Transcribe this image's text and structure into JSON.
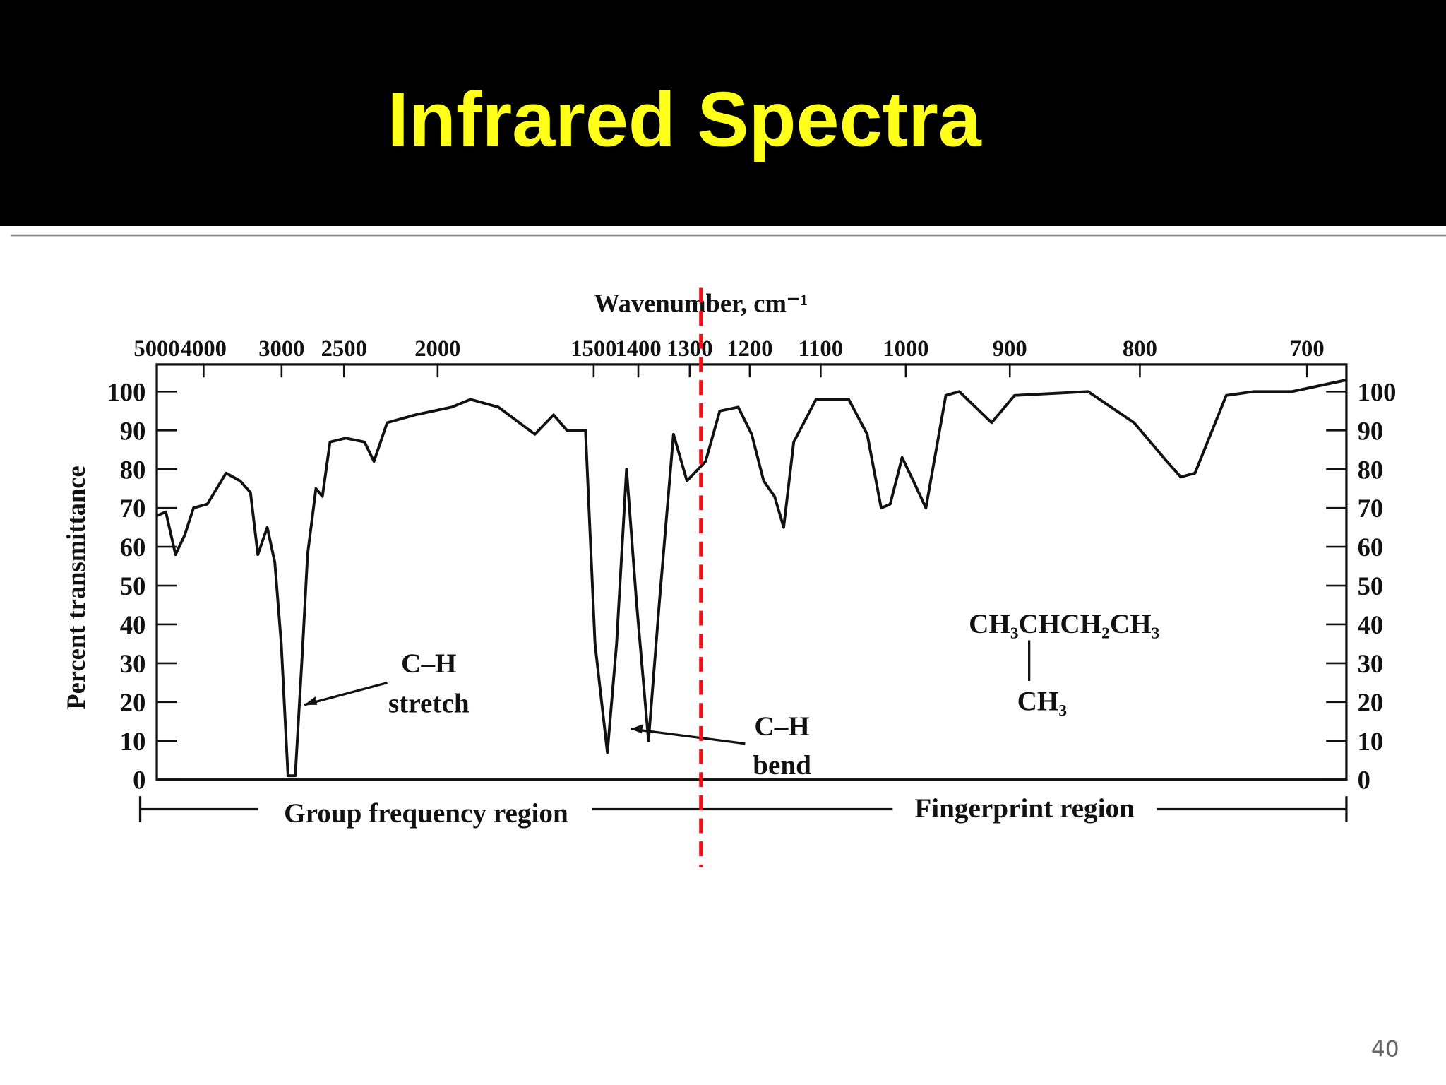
{
  "slide": {
    "title": "Infrared Spectra",
    "page_number": "40"
  },
  "chart_data": {
    "type": "line",
    "xlabel": "Wavenumber, cm⁻¹",
    "ylabel": "Percent transmittance",
    "xscale": "reciprocal",
    "xlim": [
      5000,
      680
    ],
    "xticks": [
      5000,
      4000,
      3000,
      2500,
      2000,
      1500,
      1400,
      1300,
      1200,
      1100,
      1000,
      900,
      800,
      700
    ],
    "ylim": [
      0,
      107
    ],
    "yticks": [
      0,
      10,
      20,
      30,
      40,
      50,
      60,
      70,
      80,
      90,
      100
    ],
    "y2lim": [
      0,
      107
    ],
    "y2ticks": [
      0,
      10,
      20,
      30,
      40,
      50,
      60,
      70,
      80,
      90,
      100
    ],
    "color": "#111111",
    "x": [
      5000,
      4770,
      4545,
      4350,
      4180,
      3937,
      3650,
      3460,
      3333,
      3247,
      3145,
      3067,
      3003,
      2940,
      2874,
      2809,
      2770,
      2703,
      2653,
      2597,
      2488,
      2370,
      2315,
      2242,
      2101,
      1942,
      1869,
      1770,
      1656,
      1603,
      1567,
      1520,
      1497,
      1468,
      1447,
      1425,
      1404,
      1379,
      1357,
      1330,
      1305,
      1272,
      1248,
      1218,
      1197,
      1179,
      1163,
      1150,
      1136,
      1106,
      1065,
      1043,
      1027,
      1017,
      1004,
      992,
      979,
      959,
      946,
      916,
      896,
      837,
      804,
      782,
      773,
      764,
      745,
      729,
      708,
      680
    ],
    "values": [
      68,
      69,
      58,
      63,
      70,
      71,
      79,
      77,
      74,
      58,
      65,
      56,
      35,
      1,
      1,
      35,
      58,
      75,
      73,
      87,
      88,
      87,
      82,
      92,
      94,
      96,
      98,
      96,
      89,
      94,
      90,
      90,
      35,
      7,
      35,
      80,
      46,
      10,
      46,
      89,
      77,
      82,
      95,
      96,
      89,
      77,
      73,
      65,
      87,
      98,
      98,
      89,
      70,
      71,
      83,
      77,
      70,
      99,
      100,
      92,
      99,
      100,
      92,
      82,
      78,
      79,
      99,
      100,
      100,
      103
    ],
    "vline": {
      "value": 1280,
      "color": "#e8141b"
    },
    "annotations": [
      "C–H",
      "stretch",
      "C–H",
      "bend",
      "Group frequency region",
      "Fingerprint region",
      "CH₃CHCH₂CH₃",
      "CH₃"
    ]
  }
}
